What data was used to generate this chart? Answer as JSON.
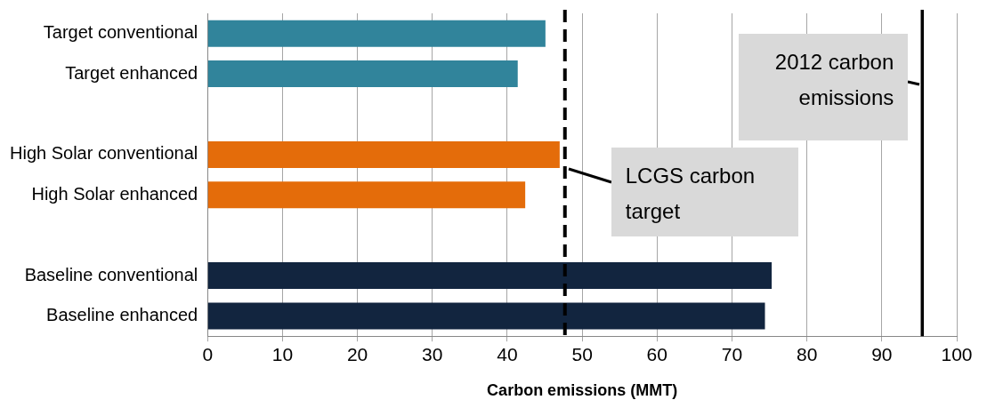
{
  "chart_data": {
    "type": "bar",
    "orientation": "horizontal",
    "xlabel": "Carbon emissions (MMT)",
    "categories": [
      "Target conventional",
      "Target enhanced",
      null,
      "High Solar conventional",
      "High Solar enhanced",
      null,
      "Baseline conventional",
      "Baseline enhanced"
    ],
    "values": [
      45.1,
      41.4,
      null,
      47.0,
      42.4,
      null,
      75.3,
      74.4
    ],
    "colors": [
      "#31849b",
      "#31849b",
      null,
      "#e46c0a",
      "#e46c0a",
      null,
      "#12253f",
      "#12253f"
    ],
    "xlim": [
      0,
      100
    ],
    "xticks": [
      0,
      10,
      20,
      30,
      40,
      50,
      60,
      70,
      80,
      90,
      100
    ],
    "grid": "x",
    "ref_lines": [
      {
        "axis": "x",
        "value": 47.7,
        "label": "LCGS carbon target",
        "color": "#000000",
        "line_style": "dashed"
      },
      {
        "axis": "x",
        "value": 95.4,
        "label": "2012 carbon emissions",
        "color": "#000000",
        "line_style": "solid"
      }
    ],
    "legend": false
  }
}
